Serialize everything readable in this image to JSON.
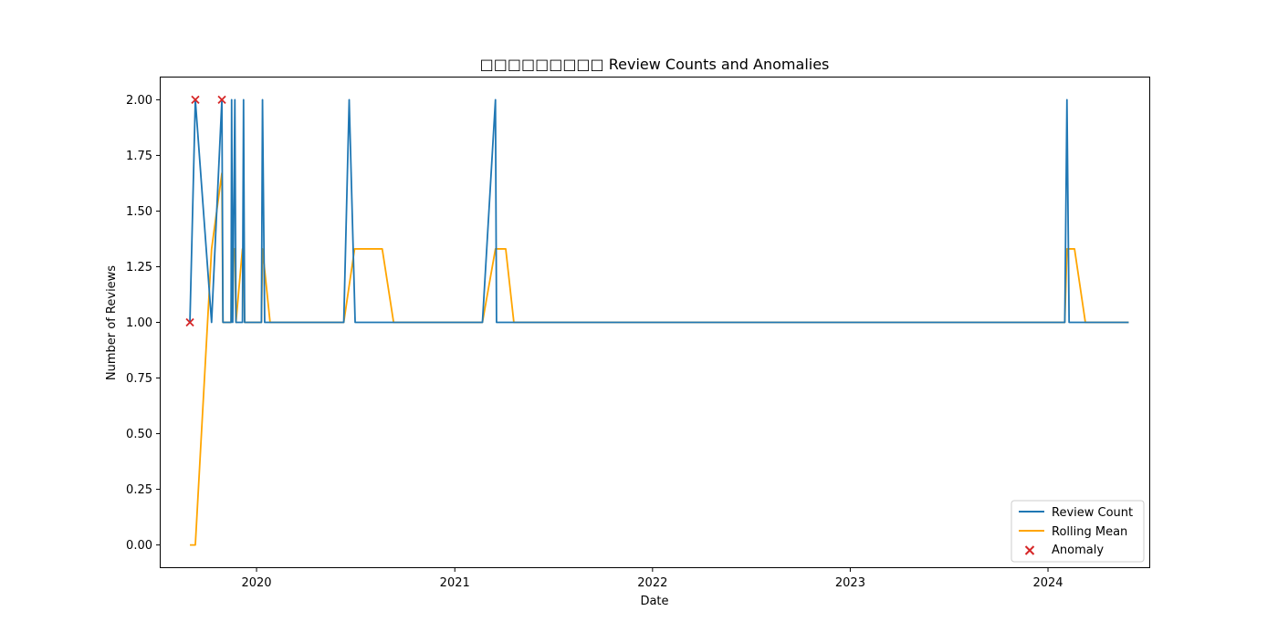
{
  "chart_data": {
    "type": "line",
    "title": "□□□□□□□□□ Review Counts and Anomalies",
    "xlabel": "Date",
    "ylabel": "Number of Reviews",
    "xlim": [
      "2019-07-08",
      "2024-07-06"
    ],
    "ylim": [
      -0.1,
      2.1
    ],
    "x_ticks": [
      "2020-01-01",
      "2021-01-01",
      "2022-01-01",
      "2023-01-01",
      "2024-01-01"
    ],
    "x_tick_labels": [
      "2020",
      "2021",
      "2022",
      "2023",
      "2024"
    ],
    "y_ticks": [
      0,
      0.25,
      0.5,
      0.75,
      1.0,
      1.25,
      1.5,
      1.75,
      2.0
    ],
    "y_tick_labels": [
      "0.00",
      "0.25",
      "0.50",
      "0.75",
      "1.00",
      "1.25",
      "1.50",
      "1.75",
      "2.00"
    ],
    "grid": false,
    "legend_position": "lower-right",
    "colors": {
      "review_count": "#1f77b4",
      "rolling_mean": "#ffa500",
      "anomaly": "#d62728"
    },
    "series": [
      {
        "name": "Review Count",
        "kind": "line",
        "points": [
          [
            "2019-08-31",
            1
          ],
          [
            "2019-09-10",
            2
          ],
          [
            "2019-10-10",
            1
          ],
          [
            "2019-10-29",
            2
          ],
          [
            "2019-10-31",
            1
          ],
          [
            "2019-11-15",
            1
          ],
          [
            "2019-11-16",
            2
          ],
          [
            "2019-11-18",
            1
          ],
          [
            "2019-11-22",
            2
          ],
          [
            "2019-11-24",
            1
          ],
          [
            "2019-12-06",
            1
          ],
          [
            "2019-12-08",
            2
          ],
          [
            "2019-12-10",
            1
          ],
          [
            "2020-01-10",
            1
          ],
          [
            "2020-01-12",
            2
          ],
          [
            "2020-01-16",
            1
          ],
          [
            "2020-06-10",
            1
          ],
          [
            "2020-06-20",
            2
          ],
          [
            "2020-07-01",
            1
          ],
          [
            "2021-02-21",
            1
          ],
          [
            "2021-03-17",
            2
          ],
          [
            "2021-03-19",
            1
          ],
          [
            "2024-02-01",
            1
          ],
          [
            "2024-02-05",
            2
          ],
          [
            "2024-02-09",
            1
          ],
          [
            "2024-05-29",
            1
          ]
        ]
      },
      {
        "name": "Rolling Mean",
        "kind": "line",
        "points": [
          [
            "2019-08-31",
            0
          ],
          [
            "2019-09-10",
            0
          ],
          [
            "2019-10-10",
            1.33
          ],
          [
            "2019-10-29",
            1.67
          ],
          [
            "2019-10-31",
            1
          ],
          [
            "2019-11-15",
            1
          ],
          [
            "2019-11-16",
            1.33
          ],
          [
            "2019-11-18",
            1.33
          ],
          [
            "2019-11-22",
            1.33
          ],
          [
            "2019-11-24",
            1
          ],
          [
            "2019-12-06",
            1.33
          ],
          [
            "2019-12-08",
            1.33
          ],
          [
            "2019-12-10",
            1
          ],
          [
            "2019-12-31",
            1
          ],
          [
            "2020-01-10",
            1
          ],
          [
            "2020-01-12",
            1.33
          ],
          [
            "2020-01-26",
            1
          ],
          [
            "2020-06-10",
            1
          ],
          [
            "2020-06-30",
            1.33
          ],
          [
            "2020-08-20",
            1.33
          ],
          [
            "2020-09-10",
            1
          ],
          [
            "2021-02-21",
            1
          ],
          [
            "2021-03-17",
            1.33
          ],
          [
            "2021-04-05",
            1.33
          ],
          [
            "2021-04-20",
            1
          ],
          [
            "2024-02-01",
            1
          ],
          [
            "2024-02-05",
            1.33
          ],
          [
            "2024-02-19",
            1.33
          ],
          [
            "2024-03-10",
            1
          ],
          [
            "2024-05-29",
            1
          ]
        ]
      },
      {
        "name": "Anomaly",
        "kind": "scatter",
        "marker": "x",
        "points": [
          [
            "2019-08-31",
            1
          ],
          [
            "2019-09-10",
            2
          ],
          [
            "2019-10-29",
            2
          ]
        ]
      }
    ]
  }
}
